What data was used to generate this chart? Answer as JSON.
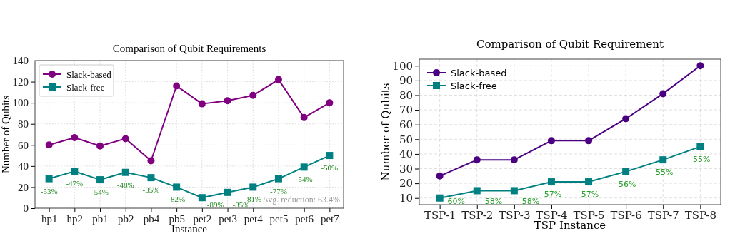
{
  "chart_data": [
    {
      "type": "line",
      "title": "Comparison of Qubit Requirements",
      "xlabel": "Instance",
      "ylabel": "Number of Qubits",
      "categories": [
        "hp1",
        "hp2",
        "pb1",
        "pb2",
        "pb4",
        "pb5",
        "pet2",
        "pet3",
        "pet4",
        "pet5",
        "pet6",
        "pet7"
      ],
      "series": [
        {
          "name": "Slack-based",
          "color": "#800080",
          "marker": "circle",
          "values": [
            60,
            67,
            59,
            66,
            45,
            116,
            99,
            102,
            107,
            122,
            86,
            100
          ]
        },
        {
          "name": "Slack-free",
          "color": "#008080",
          "marker": "square",
          "values": [
            28,
            35,
            27,
            34,
            29,
            20,
            10,
            15,
            20,
            28,
            39,
            50
          ]
        }
      ],
      "ylim": [
        0,
        140
      ],
      "yticks": [
        0,
        20,
        40,
        60,
        80,
        100,
        120,
        140
      ],
      "grid": true,
      "legend": "top left",
      "line_style": "solid",
      "annotations": [
        {
          "text": "-53%",
          "x": "hp1",
          "y": 28
        },
        {
          "text": "-47%",
          "x": "hp2",
          "y": 35
        },
        {
          "text": "-54%",
          "x": "pb1",
          "y": 27
        },
        {
          "text": "-48%",
          "x": "pb2",
          "y": 34
        },
        {
          "text": "-35%",
          "x": "pb4",
          "y": 29
        },
        {
          "text": "-82%",
          "x": "pb5",
          "y": 20
        },
        {
          "text": "-89%",
          "x": "pet2",
          "y": 10
        },
        {
          "text": "-85%",
          "x": "pet3",
          "y": 15
        },
        {
          "text": "-81%",
          "x": "pet4",
          "y": 20
        },
        {
          "text": "-77%",
          "x": "pet5",
          "y": 28
        },
        {
          "text": "-54%",
          "x": "pet6",
          "y": 39
        },
        {
          "text": "-50%",
          "x": "pet7",
          "y": 50
        },
        "Avg. reduction: 63.4%"
      ]
    },
    {
      "type": "line",
      "title": "Comparison of Qubit Requirement",
      "xlabel": "TSP Instance",
      "ylabel": "Number of Qubits",
      "categories": [
        "TSP-1",
        "TSP-2",
        "TSP-3",
        "TSP-4",
        "TSP-5",
        "TSP-6",
        "TSP-7",
        "TSP-8"
      ],
      "series": [
        {
          "name": "Slack-based",
          "color": "#4b0082",
          "marker": "circle",
          "values": [
            25,
            36,
            36,
            49,
            49,
            64,
            81,
            100
          ]
        },
        {
          "name": "Slack-free",
          "color": "#008080",
          "marker": "square",
          "values": [
            10,
            15,
            15,
            21,
            21,
            28,
            36,
            45
          ]
        }
      ],
      "ylim": [
        5.5,
        104.5
      ],
      "yticks": [
        10,
        20,
        30,
        40,
        50,
        60,
        70,
        80,
        90,
        100
      ],
      "grid": true,
      "legend": "top left",
      "line_style": "solid",
      "annotations": [
        {
          "text": "-60%",
          "x": "TSP-1",
          "y": 10
        },
        {
          "text": "-58%",
          "x": "TSP-2",
          "y": 15
        },
        {
          "text": "-58%",
          "x": "TSP-3",
          "y": 15
        },
        {
          "text": "-57%",
          "x": "TSP-4",
          "y": 21
        },
        {
          "text": "-57%",
          "x": "TSP-5",
          "y": 21
        },
        {
          "text": "-56%",
          "x": "TSP-6",
          "y": 28
        },
        {
          "text": "-55%",
          "x": "TSP-7",
          "y": 36
        },
        {
          "text": "-55%",
          "x": "TSP-8",
          "y": 45
        }
      ]
    }
  ]
}
